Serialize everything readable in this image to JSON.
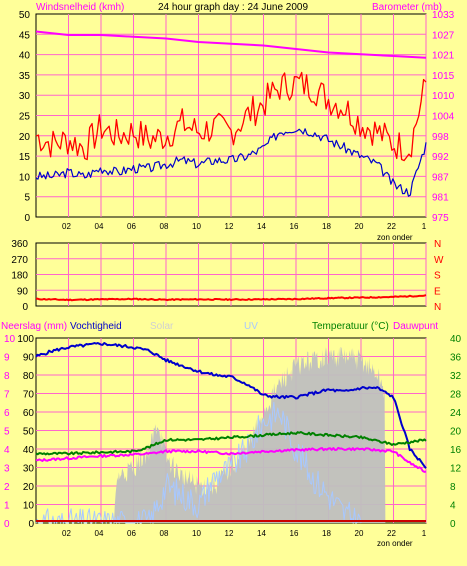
{
  "colors": {
    "background": "#ffff99",
    "grid": "#ff66cc",
    "axis": "#000000",
    "wind_max": "#ff0000",
    "wind_avg": "#0000cc",
    "barometer": "#ff00ff",
    "direction": "#ff0000",
    "humidity": "#0000cc",
    "temperature": "#008000",
    "dewpoint": "#ff00ff",
    "solar": "#bfbfbf",
    "uv": "#a8c8ff",
    "rain": "#cc0000",
    "label_left_top": "#ff00ff",
    "label_right_bottom": "#008000"
  },
  "chart_data": [
    {
      "type": "line",
      "title": "24 hour graph day : 24 June 2009",
      "ylabel": "Windsnelheid (kmh)",
      "y2label": "Barometer (mb)",
      "ylim": [
        0,
        50
      ],
      "y2lim": [
        975,
        1033
      ],
      "yticks": [
        "0",
        "5",
        "10",
        "15",
        "20",
        "25",
        "30",
        "35",
        "40",
        "45",
        "50"
      ],
      "y2ticks": [
        "975",
        "981",
        "987",
        "992",
        "998",
        "1004",
        "1010",
        "1015",
        "1021",
        "1027",
        "1033"
      ],
      "xticks": [
        "02",
        "04",
        "06",
        "08",
        "10",
        "12",
        "14",
        "16",
        "18",
        "20",
        "22",
        "1"
      ],
      "xnote": "zon onder",
      "grid": true,
      "series": [
        {
          "name": "Windsnelheid max",
          "axis": "left",
          "x": [
            0,
            1,
            2,
            3,
            4,
            5,
            6,
            7,
            8,
            9,
            10,
            11,
            12,
            13,
            14,
            15,
            16,
            17,
            18,
            19,
            20,
            21,
            22,
            23,
            24
          ],
          "values": [
            20,
            18,
            19,
            17,
            22,
            20,
            21,
            19,
            20,
            23,
            21,
            22,
            21,
            25,
            28,
            32,
            33,
            32,
            29,
            27,
            23,
            21,
            18,
            17,
            33
          ]
        },
        {
          "name": "Windsnelheid gem",
          "axis": "left",
          "x": [
            0,
            1,
            2,
            3,
            4,
            5,
            6,
            7,
            8,
            9,
            10,
            11,
            12,
            13,
            14,
            15,
            16,
            17,
            18,
            19,
            20,
            21,
            22,
            23,
            24
          ],
          "values": [
            10,
            10,
            11,
            10,
            12,
            11,
            12,
            12,
            13,
            14,
            13,
            14,
            14,
            15,
            17,
            21,
            22,
            21,
            19,
            17,
            15,
            13,
            8,
            6,
            18
          ]
        },
        {
          "name": "Barometer",
          "axis": "right",
          "x": [
            0,
            2,
            4,
            6,
            8,
            10,
            12,
            14,
            16,
            18,
            20,
            22,
            24
          ],
          "values": [
            1028,
            1027,
            1027,
            1026.5,
            1026,
            1025,
            1024.5,
            1024,
            1023,
            1022,
            1021.5,
            1021,
            1020.5
          ]
        }
      ]
    },
    {
      "type": "line",
      "yticks": [
        "0",
        "90",
        "180",
        "270",
        "360"
      ],
      "ylim": [
        0,
        360
      ],
      "y2ticks": [
        "N",
        "E",
        "S",
        "W",
        "N"
      ],
      "xticks": [
        "02",
        "04",
        "06",
        "08",
        "10",
        "12",
        "14",
        "16",
        "18",
        "20",
        "22",
        "1"
      ],
      "series": [
        {
          "name": "Windrichting",
          "axis": "left",
          "x": [
            0,
            2,
            4,
            6,
            8,
            10,
            12,
            14,
            16,
            18,
            20,
            22,
            24
          ],
          "values": [
            40,
            35,
            38,
            40,
            36,
            38,
            37,
            38,
            40,
            45,
            48,
            52,
            60
          ]
        }
      ]
    },
    {
      "type": "area",
      "ylabel": "Neerslag (mm)",
      "ylabel2": "Vochtigheid",
      "ylabel3": "Solar",
      "ylabel4": "UV",
      "y2label": "Temperatuur (°C)",
      "y2label_b": "Dauwpunt",
      "yticks_rain": [
        "0",
        "1",
        "2",
        "3",
        "4",
        "5",
        "6",
        "7",
        "8",
        "9",
        "10"
      ],
      "yticks_hum": [
        "0",
        "10",
        "20",
        "30",
        "40",
        "50",
        "60",
        "70",
        "80",
        "90",
        "100"
      ],
      "y2ticks": [
        "0",
        "4",
        "8",
        "12",
        "16",
        "20",
        "24",
        "28",
        "32",
        "36",
        "40"
      ],
      "ylim": [
        0,
        10
      ],
      "y2lim": [
        0,
        40
      ],
      "xticks": [
        "02",
        "04",
        "06",
        "08",
        "10",
        "12",
        "14",
        "16",
        "18",
        "20",
        "22",
        "1"
      ],
      "xnote": "zon onder",
      "series": [
        {
          "name": "Vochtigheid",
          "axis": "humidity",
          "x": [
            0,
            1,
            2,
            3,
            4,
            5,
            6,
            7,
            8,
            9,
            10,
            11,
            12,
            13,
            14,
            15,
            16,
            17,
            18,
            19,
            20,
            21,
            22,
            23,
            24
          ],
          "values": [
            90,
            93,
            95,
            96,
            97,
            96,
            95,
            93,
            88,
            85,
            82,
            80,
            79,
            75,
            69,
            68,
            68,
            70,
            72,
            71,
            73,
            73,
            68,
            40,
            30
          ]
        },
        {
          "name": "Temperatuur",
          "axis": "right",
          "x": [
            0,
            2,
            4,
            6,
            7,
            8,
            10,
            12,
            14,
            16,
            18,
            20,
            22,
            24
          ],
          "values": [
            15,
            15,
            15.3,
            15.5,
            16.5,
            18,
            18,
            18.5,
            19,
            19.5,
            19,
            18.5,
            17,
            18
          ]
        },
        {
          "name": "Dauwpunt",
          "axis": "right",
          "x": [
            0,
            2,
            4,
            6,
            7,
            8,
            10,
            12,
            14,
            16,
            18,
            20,
            22,
            23,
            24
          ],
          "values": [
            13.5,
            14,
            14.5,
            14.8,
            15,
            15.5,
            15.5,
            15,
            15.5,
            15.8,
            16,
            16,
            15.5,
            13,
            11
          ]
        },
        {
          "name": "Solar",
          "axis": "percent",
          "x": [
            0,
            4,
            4.8,
            5,
            6,
            7,
            7.5,
            8,
            9,
            10,
            11,
            12,
            13,
            14,
            15,
            16,
            17,
            18,
            19,
            20,
            21,
            21.5,
            22
          ],
          "values": [
            0,
            0,
            0,
            25,
            30,
            40,
            55,
            35,
            25,
            20,
            20,
            30,
            40,
            60,
            75,
            85,
            88,
            90,
            90,
            88,
            80,
            70,
            0
          ]
        },
        {
          "name": "UV",
          "axis": "percent",
          "x": [
            0,
            7,
            8,
            9,
            10,
            11,
            12,
            13,
            14,
            15,
            16,
            17,
            18,
            19,
            20
          ],
          "values": [
            0,
            0,
            20,
            15,
            10,
            25,
            30,
            40,
            55,
            60,
            40,
            25,
            15,
            5,
            0
          ]
        },
        {
          "name": "Neerslag",
          "axis": "left",
          "x": [
            0,
            24
          ],
          "values": [
            0,
            0
          ]
        }
      ]
    }
  ]
}
